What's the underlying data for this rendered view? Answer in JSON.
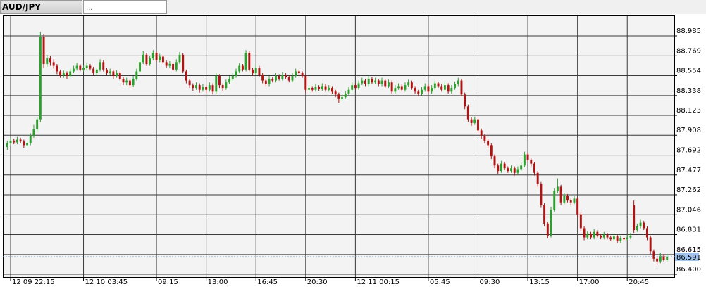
{
  "chart_data": {
    "type": "candlestick",
    "tabs": [
      "AUD/JPY",
      "..."
    ],
    "colors": {
      "up": "#2ca02c",
      "down": "#b11212",
      "background": "#f3f3f3",
      "grid": "#3a3a3a",
      "last_price": "#9fc3ee"
    },
    "grid": true,
    "xlim": [
      -1.34,
      201.4
    ],
    "xticks": [
      {
        "value": 1,
        "label": "12 09 22:15"
      },
      {
        "value": 23,
        "label": "12 10 03:45"
      },
      {
        "value": 45,
        "label": "09:15"
      },
      {
        "value": 60,
        "label": "13:00"
      },
      {
        "value": 75,
        "label": "16:45"
      },
      {
        "value": 90,
        "label": "20:30"
      },
      {
        "value": 105,
        "label": "12 11 00:15"
      },
      {
        "value": 127,
        "label": "05:45"
      },
      {
        "value": 142,
        "label": "09:30"
      },
      {
        "value": 157,
        "label": "13:15"
      },
      {
        "value": 172,
        "label": "17:00"
      },
      {
        "value": 187,
        "label": "20:45"
      }
    ],
    "ylim": [
      86.362,
      89.206
    ],
    "yticks": [
      88.985,
      88.769,
      88.554,
      88.338,
      88.123,
      87.908,
      87.692,
      87.477,
      87.262,
      87.046,
      86.831,
      86.615,
      {
        "value": 86.4,
        "label": "86.400"
      }
    ],
    "open": [
      87.78,
      87.82,
      87.85,
      87.83,
      87.86,
      87.84,
      87.8,
      87.82,
      87.9,
      87.97,
      88.08,
      88.97,
      88.68,
      88.74,
      88.7,
      88.66,
      88.6,
      88.56,
      88.58,
      88.55,
      88.6,
      88.63,
      88.66,
      88.62,
      88.64,
      88.66,
      88.63,
      88.58,
      88.62,
      88.7,
      88.62,
      88.58,
      88.6,
      88.55,
      88.58,
      88.52,
      88.48,
      88.5,
      88.45,
      88.52,
      88.6,
      88.7,
      88.78,
      88.68,
      88.74,
      88.8,
      88.72,
      88.76,
      88.7,
      88.66,
      88.68,
      88.62,
      88.7,
      88.78,
      88.6,
      88.5,
      88.45,
      88.42,
      88.45,
      88.4,
      88.43,
      88.4,
      88.45,
      88.38,
      88.55,
      88.45,
      88.42,
      88.48,
      88.52,
      88.55,
      88.6,
      88.66,
      88.62,
      88.8,
      88.62,
      88.58,
      88.64,
      88.56,
      88.5,
      88.46,
      88.52,
      88.5,
      88.55,
      88.52,
      88.56,
      88.54,
      88.5,
      88.55,
      88.6,
      88.58,
      88.55,
      88.4,
      88.42,
      88.4,
      88.43,
      88.41,
      88.44,
      88.4,
      88.42,
      88.38,
      88.35,
      88.3,
      88.32,
      88.36,
      88.4,
      88.45,
      88.42,
      88.47,
      88.5,
      88.46,
      88.52,
      88.48,
      88.5,
      88.46,
      88.5,
      88.44,
      88.48,
      88.38,
      88.42,
      88.44,
      88.4,
      88.45,
      88.48,
      88.42,
      88.38,
      88.36,
      88.4,
      88.44,
      88.38,
      88.42,
      88.47,
      88.44,
      88.4,
      88.45,
      88.38,
      88.42,
      88.46,
      88.5,
      88.35,
      88.22,
      88.08,
      88.04,
      88.08,
      87.96,
      87.9,
      87.85,
      87.8,
      87.68,
      87.58,
      87.52,
      87.6,
      87.55,
      87.52,
      87.55,
      87.5,
      87.54,
      87.58,
      87.7,
      87.64,
      87.6,
      87.5,
      87.38,
      87.15,
      86.95,
      86.82,
      87.1,
      87.3,
      87.35,
      87.18,
      87.25,
      87.2,
      87.18,
      87.22,
      87.05,
      86.9,
      86.8,
      86.84,
      86.8,
      86.86,
      86.82,
      86.8,
      86.83,
      86.8,
      86.78,
      86.81,
      86.76,
      86.79,
      86.78,
      86.8,
      87.15,
      86.88,
      86.92,
      86.96,
      86.9,
      86.8,
      86.65,
      86.57,
      86.54,
      86.6,
      86.56
    ],
    "high": [
      87.85,
      87.88,
      87.87,
      87.89,
      87.88,
      87.86,
      87.84,
      87.93,
      88.02,
      88.1,
      89.03,
      89.0,
      88.78,
      88.77,
      88.73,
      88.68,
      88.62,
      88.61,
      88.6,
      88.63,
      88.66,
      88.69,
      88.68,
      88.67,
      88.69,
      88.68,
      88.65,
      88.64,
      88.73,
      88.72,
      88.64,
      88.63,
      88.62,
      88.61,
      88.6,
      88.54,
      88.53,
      88.52,
      88.55,
      88.63,
      88.73,
      88.82,
      88.8,
      88.77,
      88.83,
      88.82,
      88.79,
      88.78,
      88.72,
      88.71,
      88.7,
      88.73,
      88.81,
      88.8,
      88.62,
      88.52,
      88.47,
      88.48,
      88.47,
      88.46,
      88.45,
      88.48,
      88.47,
      88.58,
      88.57,
      88.47,
      88.51,
      88.55,
      88.58,
      88.63,
      88.69,
      88.68,
      88.83,
      88.82,
      88.64,
      88.67,
      88.66,
      88.58,
      88.52,
      88.55,
      88.54,
      88.58,
      88.57,
      88.59,
      88.58,
      88.56,
      88.58,
      88.63,
      88.62,
      88.6,
      88.57,
      88.45,
      88.44,
      88.46,
      88.45,
      88.47,
      88.46,
      88.45,
      88.44,
      88.4,
      88.37,
      88.35,
      88.39,
      88.43,
      88.48,
      88.47,
      88.5,
      88.53,
      88.52,
      88.55,
      88.54,
      88.53,
      88.52,
      88.53,
      88.52,
      88.51,
      88.5,
      88.45,
      88.47,
      88.46,
      88.48,
      88.51,
      88.5,
      88.44,
      88.4,
      88.43,
      88.47,
      88.46,
      88.45,
      88.5,
      88.49,
      88.46,
      88.48,
      88.47,
      88.45,
      88.49,
      88.53,
      88.52,
      88.37,
      88.24,
      88.1,
      88.11,
      88.1,
      87.98,
      87.92,
      87.87,
      87.82,
      87.7,
      87.6,
      87.63,
      87.62,
      87.57,
      87.58,
      87.57,
      87.57,
      87.61,
      87.73,
      87.72,
      87.66,
      87.62,
      87.52,
      87.4,
      87.17,
      86.97,
      87.13,
      87.33,
      87.44,
      87.37,
      87.28,
      87.27,
      87.22,
      87.25,
      87.24,
      87.07,
      86.92,
      86.87,
      86.86,
      86.89,
      86.88,
      86.84,
      86.86,
      86.85,
      86.82,
      86.84,
      86.83,
      86.82,
      86.81,
      86.83,
      86.85,
      87.2,
      86.95,
      86.99,
      86.98,
      86.92,
      86.82,
      86.67,
      86.59,
      86.63,
      86.62,
      86.62
    ],
    "low": [
      87.75,
      87.8,
      87.81,
      87.81,
      87.82,
      87.77,
      87.78,
      87.8,
      87.88,
      87.95,
      88.05,
      88.64,
      88.65,
      88.66,
      88.63,
      88.57,
      88.53,
      88.53,
      88.52,
      88.53,
      88.58,
      88.61,
      88.6,
      88.6,
      88.62,
      88.61,
      88.56,
      88.56,
      88.6,
      88.6,
      88.56,
      88.56,
      88.52,
      88.53,
      88.5,
      88.45,
      88.45,
      88.42,
      88.43,
      88.5,
      88.58,
      88.68,
      88.66,
      88.66,
      88.72,
      88.7,
      88.7,
      88.68,
      88.64,
      88.64,
      88.6,
      88.6,
      88.68,
      88.58,
      88.47,
      88.42,
      88.39,
      88.4,
      88.37,
      88.38,
      88.37,
      88.38,
      88.35,
      88.36,
      88.42,
      88.39,
      88.4,
      88.46,
      88.5,
      88.53,
      88.58,
      88.6,
      88.6,
      88.6,
      88.55,
      88.56,
      88.54,
      88.47,
      88.44,
      88.44,
      88.48,
      88.48,
      88.5,
      88.5,
      88.52,
      88.48,
      88.48,
      88.53,
      88.56,
      88.53,
      88.37,
      88.38,
      88.38,
      88.38,
      88.39,
      88.39,
      88.38,
      88.38,
      88.36,
      88.32,
      88.26,
      88.28,
      88.3,
      88.34,
      88.38,
      88.4,
      88.4,
      88.45,
      88.44,
      88.44,
      88.46,
      88.46,
      88.44,
      88.44,
      88.42,
      88.42,
      88.36,
      88.36,
      88.4,
      88.38,
      88.38,
      88.43,
      88.4,
      88.36,
      88.33,
      88.34,
      88.38,
      88.36,
      88.36,
      88.4,
      88.42,
      88.38,
      88.38,
      88.36,
      88.36,
      88.4,
      88.44,
      88.33,
      88.19,
      88.05,
      88.01,
      88.02,
      87.93,
      87.87,
      87.82,
      87.77,
      87.65,
      87.55,
      87.49,
      87.5,
      87.53,
      87.5,
      87.5,
      87.47,
      87.48,
      87.52,
      87.56,
      87.62,
      87.57,
      87.47,
      87.35,
      87.12,
      86.92,
      86.79,
      86.8,
      87.08,
      87.28,
      87.15,
      87.16,
      87.18,
      87.15,
      87.16,
      87.02,
      86.87,
      86.77,
      86.78,
      86.78,
      86.78,
      86.8,
      86.78,
      86.78,
      86.78,
      86.76,
      86.76,
      86.74,
      86.74,
      86.76,
      86.76,
      86.78,
      86.85,
      86.86,
      86.9,
      86.88,
      86.77,
      86.62,
      86.54,
      86.5,
      86.52,
      86.54,
      86.54
    ],
    "close": [
      87.82,
      87.85,
      87.83,
      87.86,
      87.84,
      87.8,
      87.82,
      87.9,
      87.97,
      88.08,
      88.97,
      88.68,
      88.74,
      88.7,
      88.66,
      88.6,
      88.56,
      88.58,
      88.55,
      88.6,
      88.63,
      88.66,
      88.62,
      88.64,
      88.66,
      88.63,
      88.58,
      88.62,
      88.7,
      88.62,
      88.58,
      88.6,
      88.55,
      88.58,
      88.52,
      88.48,
      88.5,
      88.45,
      88.52,
      88.6,
      88.7,
      88.78,
      88.68,
      88.74,
      88.8,
      88.72,
      88.76,
      88.7,
      88.66,
      88.68,
      88.62,
      88.7,
      88.78,
      88.6,
      88.5,
      88.45,
      88.42,
      88.45,
      88.4,
      88.43,
      88.4,
      88.45,
      88.38,
      88.55,
      88.45,
      88.42,
      88.48,
      88.52,
      88.55,
      88.6,
      88.66,
      88.62,
      88.8,
      88.62,
      88.58,
      88.64,
      88.56,
      88.5,
      88.46,
      88.52,
      88.5,
      88.55,
      88.52,
      88.56,
      88.54,
      88.5,
      88.55,
      88.6,
      88.58,
      88.55,
      88.4,
      88.42,
      88.4,
      88.43,
      88.41,
      88.44,
      88.4,
      88.42,
      88.38,
      88.35,
      88.3,
      88.32,
      88.36,
      88.4,
      88.45,
      88.42,
      88.47,
      88.5,
      88.46,
      88.52,
      88.48,
      88.5,
      88.46,
      88.5,
      88.44,
      88.48,
      88.38,
      88.42,
      88.44,
      88.4,
      88.45,
      88.48,
      88.42,
      88.38,
      88.36,
      88.4,
      88.44,
      88.38,
      88.42,
      88.47,
      88.44,
      88.4,
      88.45,
      88.38,
      88.42,
      88.46,
      88.5,
      88.35,
      88.22,
      88.08,
      88.04,
      88.08,
      87.96,
      87.9,
      87.85,
      87.8,
      87.68,
      87.58,
      87.52,
      87.6,
      87.55,
      87.52,
      87.55,
      87.5,
      87.54,
      87.58,
      87.7,
      87.64,
      87.6,
      87.5,
      87.38,
      87.15,
      86.95,
      86.82,
      87.1,
      87.3,
      87.35,
      87.18,
      87.25,
      87.2,
      87.18,
      87.22,
      87.05,
      86.9,
      86.8,
      86.84,
      86.8,
      86.86,
      86.82,
      86.8,
      86.83,
      86.8,
      86.78,
      86.81,
      86.76,
      86.79,
      86.78,
      86.8,
      86.82,
      86.88,
      86.92,
      86.96,
      86.9,
      86.8,
      86.65,
      86.57,
      86.54,
      86.6,
      86.56,
      86.591
    ]
  }
}
